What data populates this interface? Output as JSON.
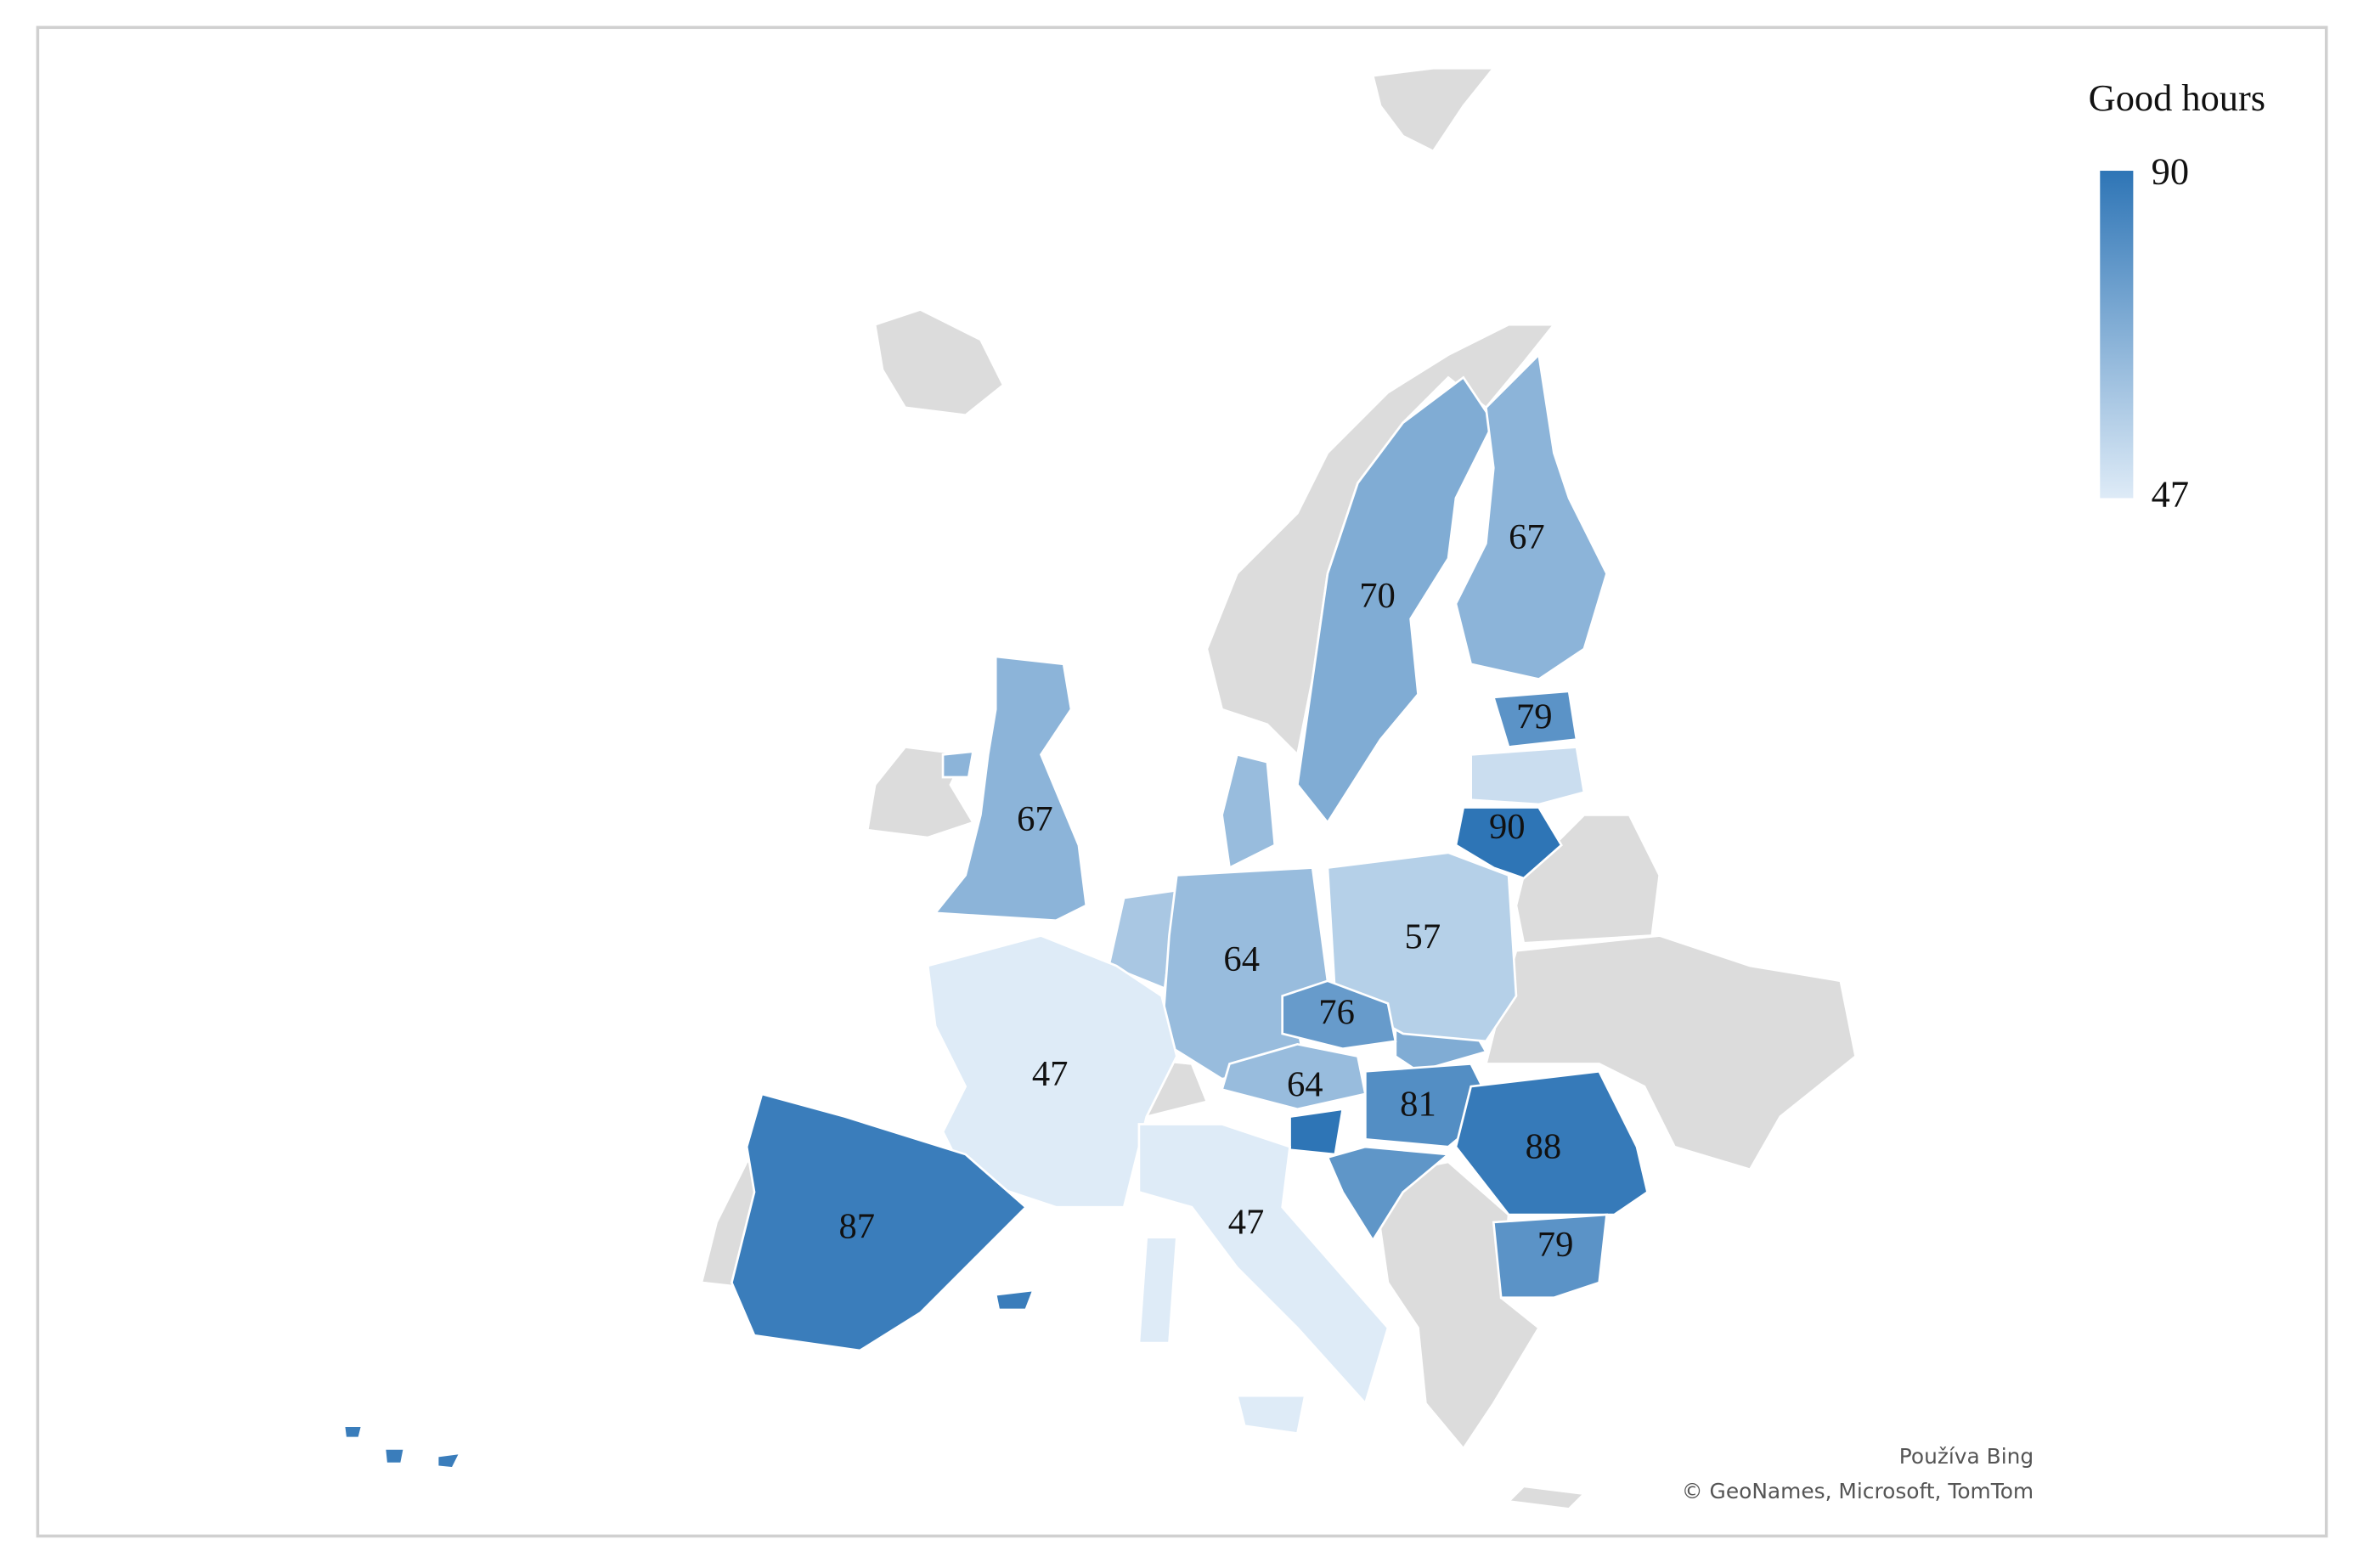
{
  "chart_data": {
    "type": "choropleth",
    "values": [
      67,
      70,
      67,
      79,
      90,
      64,
      57,
      76,
      64,
      81,
      88,
      79,
      47,
      87,
      47
    ],
    "other_values": [
      52,
      64,
      60,
      70,
      90,
      78
    ],
    "legend": {
      "title": "Good hours",
      "max": 90,
      "min": 47,
      "color_min": "#deebf7",
      "color_max": "#2e75b6"
    },
    "attribution": [
      "Používa Bing",
      "© GeoNames, Microsoft, TomTom"
    ]
  }
}
